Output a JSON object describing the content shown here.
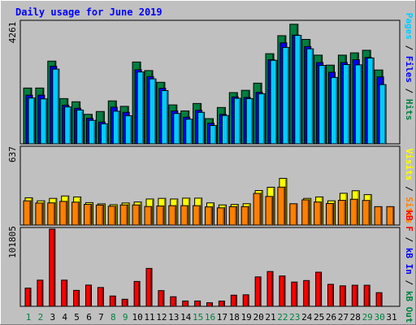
{
  "chart_data": [
    {
      "type": "bar",
      "title": "Daily usage for June 2019",
      "ymax_label": "4261",
      "ylim": [
        0,
        4261
      ],
      "side_labels": [
        {
          "text": "Pages",
          "color": "#00ccff"
        },
        {
          "text": " / ",
          "color": "#000000"
        },
        {
          "text": "Files",
          "color": "#0000ff"
        },
        {
          "text": " / ",
          "color": "#000000"
        },
        {
          "text": "Hits",
          "color": "#008040"
        }
      ],
      "categories": [
        "1",
        "2",
        "3",
        "4",
        "5",
        "6",
        "7",
        "8",
        "9",
        "10",
        "11",
        "12",
        "13",
        "14",
        "15",
        "16",
        "17",
        "18",
        "19",
        "20",
        "21",
        "22",
        "23",
        "24",
        "25",
        "26",
        "27",
        "28",
        "29",
        "30",
        "31"
      ],
      "weekend_days": [
        "1",
        "2",
        "8",
        "9",
        "15",
        "16",
        "22",
        "23",
        "29",
        "30"
      ],
      "series": [
        {
          "name": "Hits",
          "color": "#008040",
          "values": [
            1950,
            1950,
            2890,
            1580,
            1470,
            1030,
            1130,
            1500,
            1310,
            2860,
            2560,
            2150,
            1360,
            1150,
            1410,
            880,
            1270,
            1790,
            1870,
            2120,
            3150,
            3780,
            4180,
            3650,
            3100,
            2750,
            3100,
            3180,
            3270,
            2580,
            0
          ]
        },
        {
          "name": "Files",
          "color": "#0000ff",
          "values": [
            1700,
            1700,
            2710,
            1350,
            1240,
            890,
            760,
            1280,
            1100,
            2590,
            2350,
            1940,
            1150,
            930,
            1170,
            720,
            1030,
            1640,
            1620,
            1800,
            2940,
            3530,
            3800,
            3400,
            2840,
            2500,
            2840,
            2940,
            3020,
            2340,
            0
          ]
        },
        {
          "name": "Pages",
          "color": "#00ccff",
          "values": [
            1600,
            1570,
            2610,
            1290,
            1180,
            820,
            700,
            1140,
            980,
            2510,
            2270,
            1860,
            1060,
            860,
            1100,
            640,
            990,
            1590,
            1580,
            1750,
            2920,
            3370,
            3790,
            3320,
            2740,
            2320,
            2770,
            2760,
            3000,
            2070,
            0
          ]
        }
      ]
    },
    {
      "type": "bar",
      "ymax_label": "637",
      "ylim": [
        0,
        637
      ],
      "side_labels": [
        {
          "text": "Visits",
          "color": "#ffff00"
        },
        {
          "text": " / ",
          "color": "#000000"
        },
        {
          "text": "Sites",
          "color": "#ff8000"
        }
      ],
      "categories": [
        "1",
        "2",
        "3",
        "4",
        "5",
        "6",
        "7",
        "8",
        "9",
        "10",
        "11",
        "12",
        "13",
        "14",
        "15",
        "16",
        "17",
        "18",
        "19",
        "20",
        "21",
        "22",
        "23",
        "24",
        "25",
        "26",
        "27",
        "28",
        "29",
        "30",
        "31"
      ],
      "series": [
        {
          "name": "Visits",
          "color": "#ffff00",
          "values": [
            225,
            200,
            220,
            240,
            232,
            185,
            175,
            168,
            182,
            190,
            215,
            220,
            215,
            222,
            222,
            183,
            166,
            170,
            176,
            285,
            312,
            385,
            0,
            220,
            232,
            200,
            262,
            283,
            251,
            0,
            0
          ]
        },
        {
          "name": "Sites",
          "color": "#ff8000",
          "values": [
            200,
            182,
            183,
            195,
            189,
            171,
            165,
            155,
            166,
            166,
            153,
            157,
            160,
            160,
            160,
            150,
            142,
            152,
            152,
            261,
            236,
            313,
            176,
            208,
            190,
            178,
            204,
            213,
            203,
            152,
            152
          ]
        }
      ]
    },
    {
      "type": "bar",
      "ymax_label": "101805",
      "ylim": [
        0,
        101805
      ],
      "side_labels": [
        {
          "text": "kB F",
          "color": "#ff0000"
        },
        {
          "text": " / ",
          "color": "#000000"
        },
        {
          "text": "kB In",
          "color": "#0000ff"
        },
        {
          "text": " / ",
          "color": "#000000"
        },
        {
          "text": "kB Out",
          "color": "#008040"
        }
      ],
      "categories": [
        "1",
        "2",
        "3",
        "4",
        "5",
        "6",
        "7",
        "8",
        "9",
        "10",
        "11",
        "12",
        "13",
        "14",
        "15",
        "16",
        "17",
        "18",
        "19",
        "20",
        "21",
        "22",
        "23",
        "24",
        "25",
        "26",
        "27",
        "28",
        "29",
        "30",
        "31"
      ],
      "series": [
        {
          "name": "kB F",
          "color": "#ff0000",
          "values": [
            24000,
            34500,
            101800,
            34500,
            21000,
            28000,
            24800,
            13600,
            9300,
            32800,
            50000,
            20700,
            12600,
            7000,
            7000,
            4700,
            6900,
            14700,
            15200,
            38800,
            45900,
            40000,
            32000,
            34000,
            45000,
            29000,
            27000,
            27800,
            27800,
            18000,
            0
          ]
        }
      ]
    }
  ]
}
